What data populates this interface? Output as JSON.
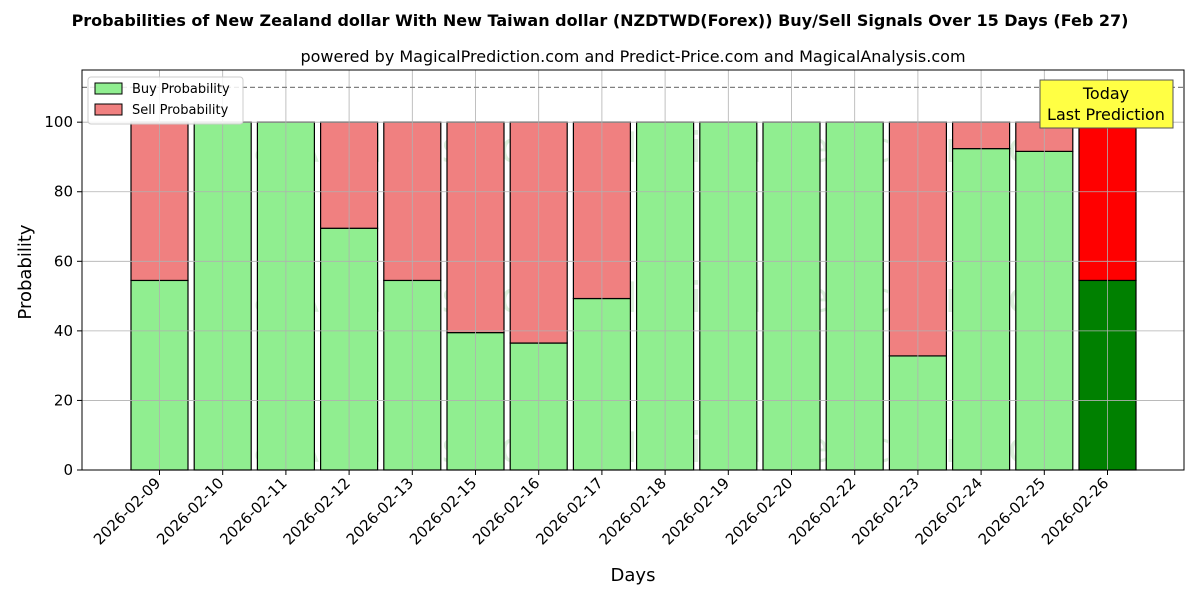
{
  "chart_data": {
    "type": "bar",
    "stacked": true,
    "title": "Probabilities of New Zealand dollar With New Taiwan dollar (NZDTWD(Forex)) Buy/Sell Signals Over 15 Days (Feb 27)",
    "subtitle": "powered by MagicalPrediction.com and Predict-Price.com and MagicalAnalysis.com",
    "xlabel": "Days",
    "ylabel": "Probability",
    "ylim": [
      0,
      115
    ],
    "yticks": [
      0,
      20,
      40,
      60,
      80,
      100
    ],
    "reference_line": 110,
    "grid": true,
    "legend_position": "top-left",
    "categories": [
      "2026-02-09",
      "2026-02-10",
      "2026-02-11",
      "2026-02-12",
      "2026-02-13",
      "2026-02-15",
      "2026-02-16",
      "2026-02-17",
      "2026-02-18",
      "2026-02-19",
      "2026-02-20",
      "2026-02-22",
      "2026-02-23",
      "2026-02-24",
      "2026-02-25",
      "2026-02-26"
    ],
    "series": [
      {
        "name": "Buy Probability",
        "color": "#90ee90",
        "highlight_color": "#008000",
        "values": [
          54.5,
          100,
          100,
          69.5,
          54.5,
          39.5,
          36.5,
          49.3,
          100,
          100,
          100,
          100,
          32.8,
          92.4,
          91.6,
          54.5
        ]
      },
      {
        "name": "Sell Probability",
        "color": "#f08080",
        "highlight_color": "#ff0000",
        "values": [
          45.5,
          0,
          0,
          30.5,
          45.5,
          60.5,
          63.5,
          50.7,
          0,
          0,
          0,
          0,
          67.2,
          7.6,
          8.4,
          45.5
        ]
      }
    ],
    "highlight_index": 15,
    "annotation": {
      "lines": [
        "Today",
        "Last Prediction"
      ],
      "color": "#ffff44"
    },
    "watermarks": [
      "MagicalAnalysis.com",
      "MagicalPrediction.com"
    ]
  }
}
